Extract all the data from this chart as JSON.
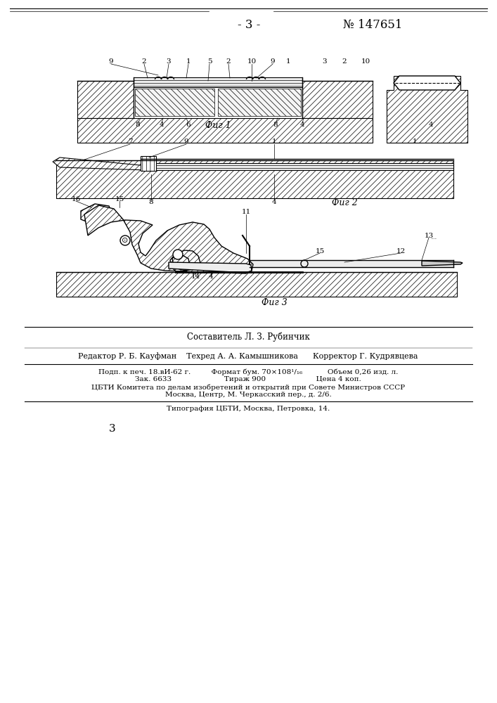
{
  "page_number": "3",
  "patent_number": "№ 147651",
  "header_label": "- 3 -",
  "fig1_label": "Фиг 1",
  "fig2_label": "Фиг 2",
  "fig3_label": "Фиг 3",
  "compiler_line": "Составитель Л. З. Рубинчик",
  "editor_line": "Редактор Р. Б. Кауфман    Техред А. А. Камышникова      Корректор Г. Кудрявцева",
  "line1": "Подп. к печ. 18.вИ-62 г.         Формат бум. 70×108¹/₁₆           Объем 0,26 изд. л.",
  "line2": "Зак. 6633                       Тираж 900                      Цена 4 коп.",
  "line3": "ЦБТИ Комитета по делам изобретений и открытий при Совете Министров СССР",
  "line4": "Москва, Центр, М. Черкасский пер., д. 2/6.",
  "line5": "Типография ЦБТИ, Москва, Петровка, 14.",
  "bg_color": "#ffffff",
  "line_color": "#000000"
}
